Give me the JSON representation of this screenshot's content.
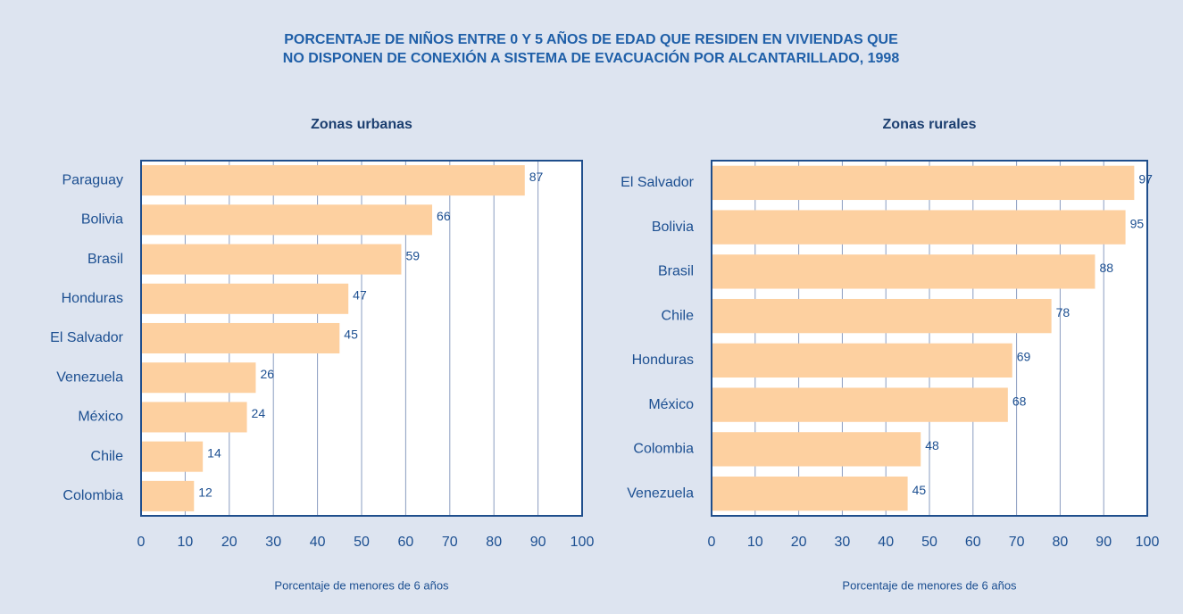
{
  "title": [
    "PORCENTAJE DE NIÑOS ENTRE 0 Y 5 AÑOS DE EDAD QUE RESIDEN EN VIVIENDAS QUE",
    "NO DISPONEN DE CONEXIÓN A SISTEMA DE EVACUACIÓN POR ALCANTARILLADO, 1998"
  ],
  "chart_data": [
    {
      "type": "barh",
      "title": "Zonas urbanas",
      "x_label": "Porcentaje de menores de 6 años",
      "categories": [
        "Paraguay",
        "Bolivia",
        "Brasil",
        "Honduras",
        "El Salvador",
        "Venezuela",
        "México",
        "Chile",
        "Colombia"
      ],
      "values": [
        87,
        66,
        59,
        47,
        45,
        26,
        24,
        14,
        12
      ],
      "color": "#fdd0a0",
      "xlim": [
        0,
        100
      ],
      "xticks": [
        0,
        10,
        20,
        30,
        40,
        50,
        60,
        70,
        80,
        90,
        100
      ],
      "grid": true
    },
    {
      "type": "barh",
      "title": "Zonas rurales",
      "x_label": "Porcentaje de menores de 6 años",
      "categories": [
        "El Salvador",
        "Bolivia",
        "Brasil",
        "Chile",
        "Honduras",
        "México",
        "Colombia",
        "Venezuela"
      ],
      "values": [
        97,
        95,
        88,
        78,
        69,
        68,
        48,
        45
      ],
      "color": "#fdd0a0",
      "xlim": [
        0,
        100
      ],
      "xticks": [
        0,
        10,
        20,
        30,
        40,
        50,
        60,
        70,
        80,
        90,
        100
      ],
      "grid": true
    }
  ]
}
